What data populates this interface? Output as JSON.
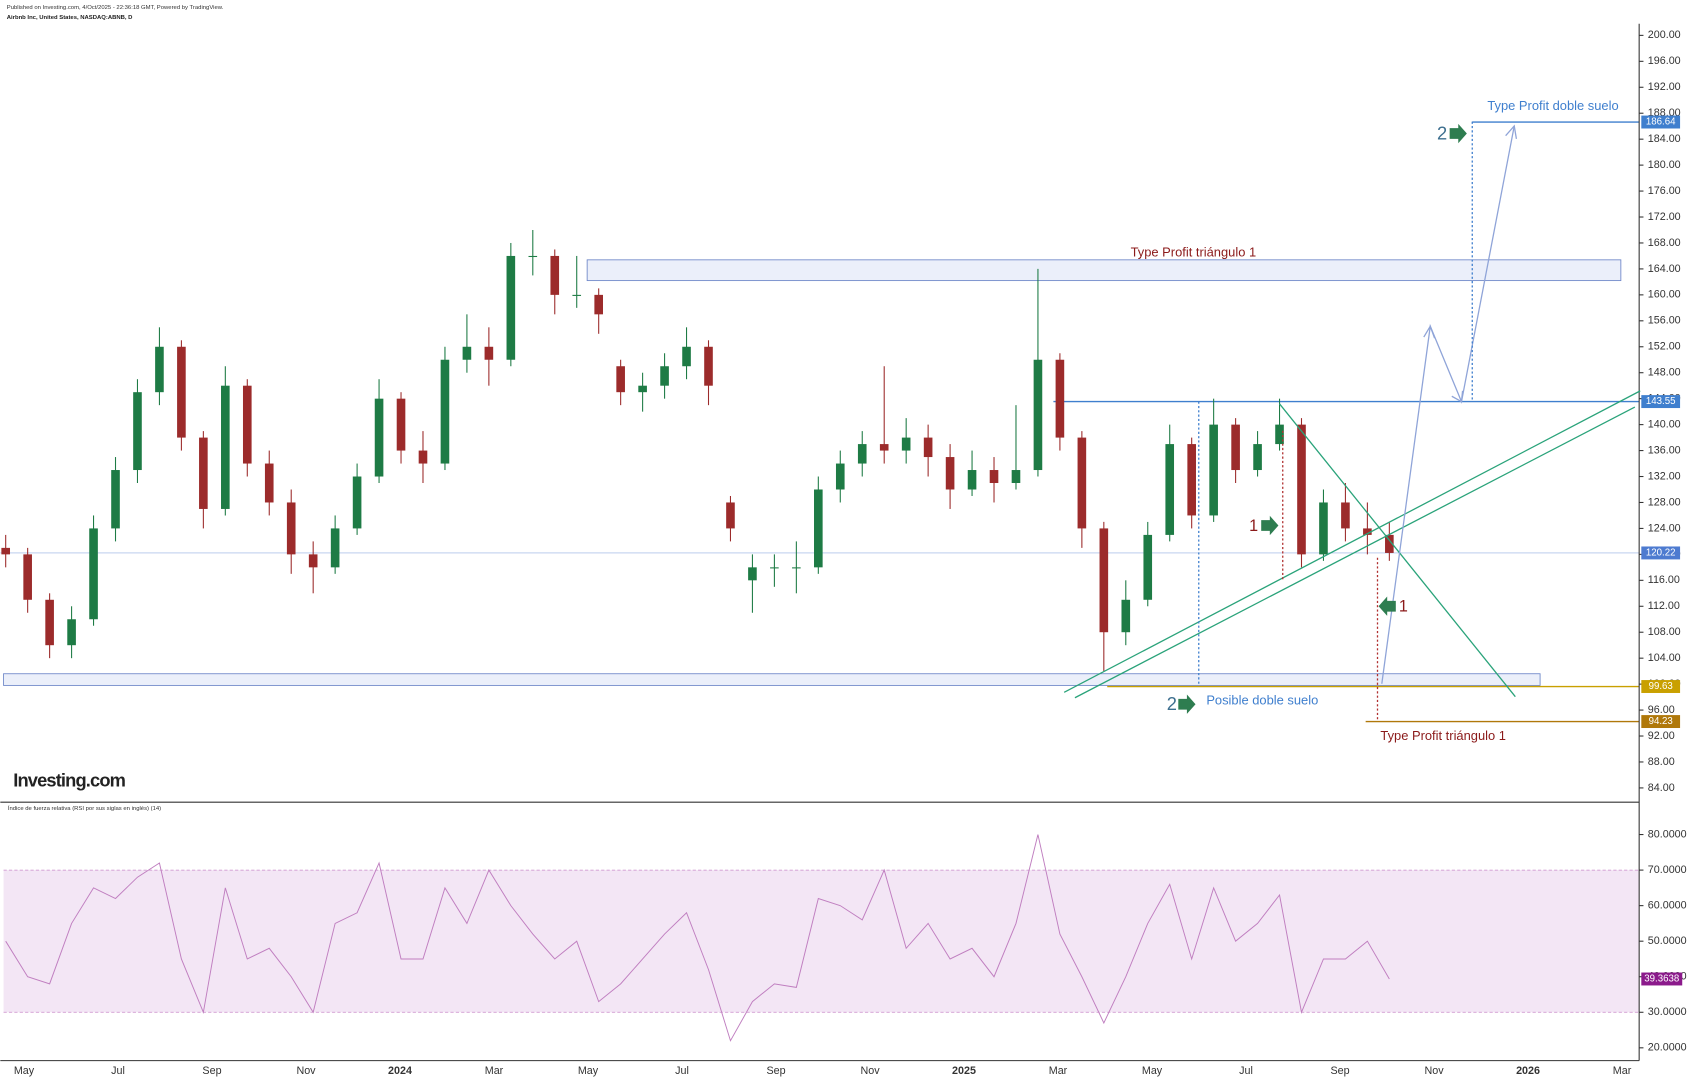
{
  "header": {
    "published": "Published on Investing.com, 4/Oct/2025 - 22:36:18 GMT, Powered by TradingView.",
    "symbol": "Airbnb Inc, United States, NASDAQ:ABNB, D"
  },
  "logo": "Investing.com",
  "annotations": {
    "tp_triangle_top": "Type Profit triángulo 1",
    "tp_triangle_bottom": "Type Profit triángulo 1",
    "tp_double_bottom": "Type Profit doble suelo",
    "double_bottom": "Posible doble suelo",
    "one_a": "1",
    "one_b": "1",
    "two_a": "2",
    "two_b": "2"
  },
  "chart_data": [
    {
      "type": "candlestick",
      "up_color": "#1e7b45",
      "down_color": "#9c2b2b",
      "ohlc": [
        [
          121,
          123,
          118,
          120
        ],
        [
          120,
          121,
          111,
          113
        ],
        [
          113,
          114,
          104,
          106
        ],
        [
          106,
          112,
          104,
          110
        ],
        [
          110,
          126,
          109,
          124
        ],
        [
          124,
          135,
          122,
          133
        ],
        [
          133,
          147,
          131,
          145
        ],
        [
          145,
          155,
          143,
          152
        ],
        [
          152,
          153,
          136,
          138
        ],
        [
          138,
          139,
          124,
          127
        ],
        [
          127,
          149,
          126,
          146
        ],
        [
          146,
          147,
          132,
          134
        ],
        [
          134,
          136,
          126,
          128
        ],
        [
          128,
          130,
          117,
          120
        ],
        [
          120,
          122,
          114,
          118
        ],
        [
          118,
          126,
          117,
          124
        ],
        [
          124,
          134,
          123,
          132
        ],
        [
          132,
          147,
          131,
          144
        ],
        [
          144,
          145,
          134,
          136
        ],
        [
          136,
          139,
          131,
          134
        ],
        [
          134,
          152,
          133,
          150
        ],
        [
          150,
          157,
          148,
          152
        ],
        [
          152,
          155,
          146,
          150
        ],
        [
          150,
          168,
          149,
          166
        ],
        [
          166,
          170,
          163,
          166
        ],
        [
          166,
          167,
          157,
          160
        ],
        [
          160,
          166,
          158,
          160
        ],
        [
          160,
          161,
          154,
          157
        ],
        [
          149,
          150,
          143,
          145
        ],
        [
          145,
          148,
          142,
          146
        ],
        [
          146,
          151,
          144,
          149
        ],
        [
          149,
          155,
          147,
          152
        ],
        [
          152,
          153,
          143,
          146
        ],
        [
          128,
          129,
          122,
          124
        ],
        [
          116,
          120,
          111,
          118
        ],
        [
          118,
          120,
          115,
          118
        ],
        [
          118,
          122,
          114,
          118
        ],
        [
          118,
          132,
          117,
          130
        ],
        [
          130,
          136,
          128,
          134
        ],
        [
          134,
          139,
          132,
          137
        ],
        [
          137,
          149,
          134,
          136
        ],
        [
          136,
          141,
          134,
          138
        ],
        [
          138,
          140,
          132,
          135
        ],
        [
          135,
          137,
          127,
          130
        ],
        [
          130,
          136,
          129,
          133
        ],
        [
          133,
          135,
          128,
          131
        ],
        [
          131,
          143,
          130,
          133
        ],
        [
          133,
          164,
          132,
          150
        ],
        [
          150,
          151,
          136,
          138
        ],
        [
          138,
          139,
          121,
          124
        ],
        [
          124,
          125,
          102,
          108
        ],
        [
          108,
          116,
          106,
          113
        ],
        [
          113,
          125,
          112,
          123
        ],
        [
          123,
          140,
          122,
          137
        ],
        [
          137,
          138,
          124,
          126
        ],
        [
          126,
          144,
          125,
          140
        ],
        [
          140,
          141,
          131,
          133
        ],
        [
          133,
          139,
          132,
          137
        ],
        [
          137,
          144,
          136,
          140
        ],
        [
          140,
          141,
          118,
          120
        ],
        [
          120,
          130,
          119,
          128
        ],
        [
          128,
          131,
          122,
          124
        ],
        [
          124,
          128,
          120,
          123
        ],
        [
          123,
          125,
          119,
          120.22
        ]
      ],
      "x_labels": [
        "May",
        "Jul",
        "Sep",
        "Nov",
        "2024",
        "Mar",
        "May",
        "Jul",
        "Sep",
        "Nov",
        "2025",
        "Mar",
        "May",
        "Jul",
        "Sep",
        "Nov",
        "2026",
        "Mar"
      ],
      "ylim": [
        81.8,
        201.8
      ],
      "yticks": [
        {
          "value": 84,
          "label": "84.00"
        },
        {
          "value": 88,
          "label": "88.00"
        },
        {
          "value": 92,
          "label": "92.00"
        },
        {
          "value": 96,
          "label": "96.00"
        },
        {
          "value": 100,
          "label": "100.00"
        },
        {
          "value": 104,
          "label": "104.00"
        },
        {
          "value": 108,
          "label": "108.00"
        },
        {
          "value": 112,
          "label": "112.00"
        },
        {
          "value": 116,
          "label": "116.00"
        },
        {
          "value": 120,
          "label": "120.00"
        },
        {
          "value": 124,
          "label": "124.00"
        },
        {
          "value": 128,
          "label": "128.00"
        },
        {
          "value": 132,
          "label": "132.00"
        },
        {
          "value": 136,
          "label": "136.00"
        },
        {
          "value": 140,
          "label": "140.00"
        },
        {
          "value": 144,
          "label": "144.00"
        },
        {
          "value": 148,
          "label": "148.00"
        },
        {
          "value": 152,
          "label": "152.00"
        },
        {
          "value": 156,
          "label": "156.00"
        },
        {
          "value": 160,
          "label": "160.00"
        },
        {
          "value": 164,
          "label": "164.00"
        },
        {
          "value": 168,
          "label": "168.00"
        },
        {
          "value": 172,
          "label": "172.00"
        },
        {
          "value": 176,
          "label": "176.00"
        },
        {
          "value": 180,
          "label": "180.00"
        },
        {
          "value": 184,
          "label": "184.00"
        },
        {
          "value": 188,
          "label": "188.00"
        },
        {
          "value": 192,
          "label": "192.00"
        },
        {
          "value": 196,
          "label": "196.00"
        },
        {
          "value": 200,
          "label": "200.00"
        }
      ],
      "levels": [
        {
          "value": 186.64,
          "color": "#3f7fce"
        },
        {
          "value": 143.55,
          "color": "#3f7fce"
        },
        {
          "value": 120.22,
          "color": "#4d7bd0"
        },
        {
          "value": 99.63,
          "color": "#c9a000"
        },
        {
          "value": 94.23,
          "color": "#b0780a"
        }
      ],
      "zones": [
        [
          162.2,
          165.4
        ],
        [
          99.8,
          101.6
        ]
      ]
    },
    {
      "type": "line",
      "title": "Índice de fuerza relativa (RSI por sus siglas en inglés) (14)",
      "color": "#c07fc0",
      "values": [
        50,
        40,
        38,
        55,
        65,
        62,
        68,
        72,
        45,
        30,
        65,
        45,
        48,
        40,
        30,
        55,
        58,
        72,
        45,
        45,
        65,
        55,
        70,
        60,
        52,
        45,
        50,
        33,
        38,
        45,
        52,
        58,
        42,
        22,
        33,
        38,
        37,
        62,
        60,
        56,
        70,
        48,
        55,
        45,
        48,
        40,
        55,
        80,
        52,
        40,
        27,
        40,
        55,
        66,
        45,
        65,
        50,
        55,
        63,
        30,
        45,
        45,
        50,
        39.3638
      ],
      "band": [
        30,
        70
      ],
      "ylim": [
        16.4,
        88.8
      ],
      "yticks": [
        {
          "value": 20,
          "label": "20.0000"
        },
        {
          "value": 30,
          "label": "30.0000"
        },
        {
          "value": 40,
          "label": "40.0000"
        },
        {
          "value": 50,
          "label": "50.0000"
        },
        {
          "value": 60,
          "label": "60.0000"
        },
        {
          "value": 70,
          "label": "70.0000"
        },
        {
          "value": 80,
          "label": "80.0000"
        }
      ]
    }
  ]
}
